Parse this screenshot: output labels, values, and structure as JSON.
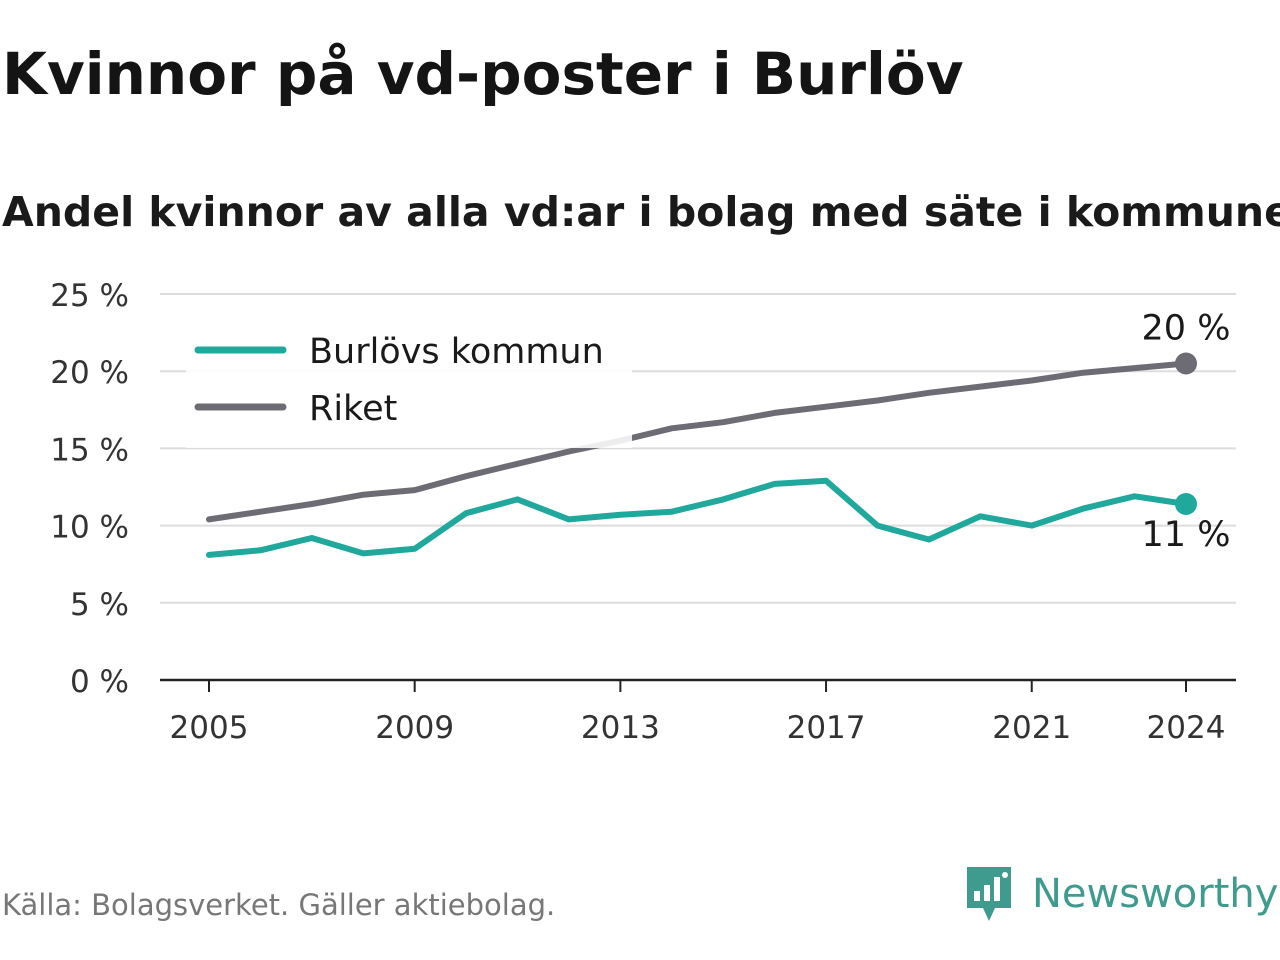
{
  "title": "Kvinnor på vd-poster i Burlöv",
  "subtitle": "Andel kvinnor av alla vd:ar i bolag med säte i kommunen",
  "source": "Källa: Bolagsverket. Gäller aktiebolag.",
  "brand": {
    "name": "Newsworthy",
    "icon": "newsworthy-logo-icon",
    "color": "#3e9b8e"
  },
  "chart_data": {
    "type": "line",
    "x": [
      2005,
      2006,
      2007,
      2008,
      2009,
      2010,
      2011,
      2012,
      2013,
      2014,
      2015,
      2016,
      2017,
      2018,
      2019,
      2020,
      2021,
      2022,
      2023,
      2024
    ],
    "x_ticks": [
      2005,
      2009,
      2013,
      2017,
      2021,
      2024
    ],
    "y_ticks": [
      0,
      5,
      10,
      15,
      20,
      25
    ],
    "y_tick_labels": [
      "0 %",
      "5 %",
      "10 %",
      "15 %",
      "20 %",
      "25 %"
    ],
    "ylim": [
      0,
      25
    ],
    "grid": true,
    "legend_position": "top-left",
    "series": [
      {
        "name": "Burlövs kommun",
        "color": "#1fa89b",
        "values": [
          8.1,
          8.4,
          9.2,
          8.2,
          8.5,
          10.8,
          11.7,
          10.4,
          10.7,
          10.9,
          11.7,
          12.7,
          12.9,
          10.0,
          9.1,
          10.6,
          10.0,
          11.1,
          11.9,
          11.4
        ],
        "end_label": "11 %"
      },
      {
        "name": "Riket",
        "color": "#6d6c74",
        "values": [
          10.4,
          10.9,
          11.4,
          12.0,
          12.3,
          13.2,
          14.0,
          14.8,
          15.5,
          16.3,
          16.7,
          17.3,
          17.7,
          18.1,
          18.6,
          19.0,
          19.4,
          19.9,
          20.2,
          20.5
        ],
        "end_label": "20 %"
      }
    ]
  }
}
